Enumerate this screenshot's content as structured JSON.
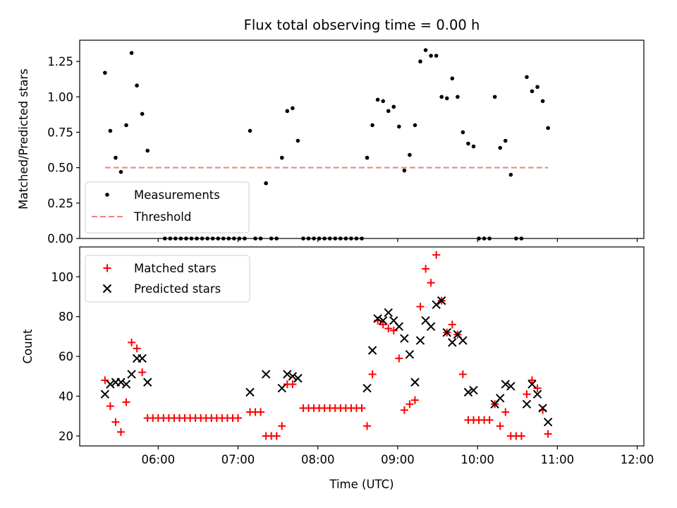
{
  "chart_data": [
    {
      "type": "scatter",
      "title": "Flux total observing time = 0.00 h",
      "xlabel": "",
      "ylabel": "Matched/Predicted stars",
      "ylim": [
        0,
        1.4
      ],
      "xlim": [
        "05:01",
        "12:05"
      ],
      "y_ticks": [
        "0.00",
        "0.25",
        "0.50",
        "0.75",
        "1.00",
        "1.25"
      ],
      "y_tick_values": [
        0,
        0.25,
        0.5,
        0.75,
        1.0,
        1.25
      ],
      "legend_position": "lower-left",
      "series": [
        {
          "name": "Measurements",
          "marker": "dot",
          "color": "#000000",
          "points": [
            [
              "05:20",
              1.17
            ],
            [
              "05:24",
              0.76
            ],
            [
              "05:28",
              0.57
            ],
            [
              "05:32",
              0.47
            ],
            [
              "05:36",
              0.8
            ],
            [
              "05:40",
              1.31
            ],
            [
              "05:44",
              1.08
            ],
            [
              "05:48",
              0.88
            ],
            [
              "05:52",
              0.62
            ],
            [
              "06:05",
              0
            ],
            [
              "06:09",
              0
            ],
            [
              "06:13",
              0
            ],
            [
              "06:17",
              0
            ],
            [
              "06:21",
              0
            ],
            [
              "06:25",
              0
            ],
            [
              "06:29",
              0
            ],
            [
              "06:33",
              0
            ],
            [
              "06:37",
              0
            ],
            [
              "06:41",
              0
            ],
            [
              "06:45",
              0
            ],
            [
              "06:49",
              0
            ],
            [
              "06:53",
              0
            ],
            [
              "06:57",
              0
            ],
            [
              "07:01",
              0
            ],
            [
              "07:05",
              0
            ],
            [
              "07:09",
              0.76
            ],
            [
              "07:13",
              0
            ],
            [
              "07:17",
              0
            ],
            [
              "07:21",
              0.39
            ],
            [
              "07:25",
              0
            ],
            [
              "07:29",
              0
            ],
            [
              "07:33",
              0.57
            ],
            [
              "07:37",
              0.9
            ],
            [
              "07:41",
              0.92
            ],
            [
              "07:45",
              0.69
            ],
            [
              "07:49",
              0
            ],
            [
              "07:53",
              0
            ],
            [
              "07:57",
              0
            ],
            [
              "08:01",
              0
            ],
            [
              "08:05",
              0
            ],
            [
              "08:09",
              0
            ],
            [
              "08:13",
              0
            ],
            [
              "08:17",
              0
            ],
            [
              "08:21",
              0
            ],
            [
              "08:25",
              0
            ],
            [
              "08:29",
              0
            ],
            [
              "08:33",
              0
            ],
            [
              "08:37",
              0.57
            ],
            [
              "08:41",
              0.8
            ],
            [
              "08:45",
              0.98
            ],
            [
              "08:49",
              0.97
            ],
            [
              "08:53",
              0.9
            ],
            [
              "08:57",
              0.93
            ],
            [
              "09:01",
              0.79
            ],
            [
              "09:05",
              0.48
            ],
            [
              "09:09",
              0.59
            ],
            [
              "09:13",
              0.8
            ],
            [
              "09:17",
              1.25
            ],
            [
              "09:21",
              1.33
            ],
            [
              "09:25",
              1.29
            ],
            [
              "09:29",
              1.29
            ],
            [
              "09:33",
              1.0
            ],
            [
              "09:37",
              0.99
            ],
            [
              "09:41",
              1.13
            ],
            [
              "09:45",
              1.0
            ],
            [
              "09:49",
              0.75
            ],
            [
              "09:53",
              0.67
            ],
            [
              "09:57",
              0.65
            ],
            [
              "10:01",
              0
            ],
            [
              "10:05",
              0
            ],
            [
              "10:09",
              0
            ],
            [
              "10:13",
              1.0
            ],
            [
              "10:17",
              0.64
            ],
            [
              "10:21",
              0.69
            ],
            [
              "10:25",
              0.45
            ],
            [
              "10:29",
              0
            ],
            [
              "10:33",
              0
            ],
            [
              "10:37",
              1.14
            ],
            [
              "10:41",
              1.04
            ],
            [
              "10:45",
              1.07
            ],
            [
              "10:49",
              0.97
            ],
            [
              "10:53",
              0.78
            ]
          ]
        },
        {
          "name": "Threshold",
          "type": "line",
          "style": "dashed",
          "color": "#f08080",
          "points": [
            [
              "05:20",
              0.5
            ],
            [
              "10:53",
              0.5
            ]
          ]
        }
      ]
    },
    {
      "type": "scatter",
      "title": "",
      "xlabel": "Time (UTC)",
      "ylabel": "Count",
      "ylim": [
        15,
        115
      ],
      "xlim": [
        "05:01",
        "12:05"
      ],
      "x_ticks": [
        "06:00",
        "07:00",
        "08:00",
        "09:00",
        "10:00",
        "11:00",
        "12:00"
      ],
      "y_ticks": [
        "20",
        "40",
        "60",
        "80",
        "100"
      ],
      "y_tick_values": [
        20,
        40,
        60,
        80,
        100
      ],
      "legend_position": "upper-left",
      "series": [
        {
          "name": "Matched stars",
          "marker": "plus",
          "color": "#ff0000",
          "points": [
            [
              "05:20",
              48
            ],
            [
              "05:24",
              35
            ],
            [
              "05:28",
              27
            ],
            [
              "05:32",
              22
            ],
            [
              "05:36",
              37
            ],
            [
              "05:40",
              67
            ],
            [
              "05:44",
              64
            ],
            [
              "05:48",
              52
            ],
            [
              "05:52",
              29
            ],
            [
              "05:56",
              29
            ],
            [
              "06:00",
              29
            ],
            [
              "06:04",
              29
            ],
            [
              "06:08",
              29
            ],
            [
              "06:12",
              29
            ],
            [
              "06:16",
              29
            ],
            [
              "06:20",
              29
            ],
            [
              "06:24",
              29
            ],
            [
              "06:28",
              29
            ],
            [
              "06:32",
              29
            ],
            [
              "06:36",
              29
            ],
            [
              "06:40",
              29
            ],
            [
              "06:44",
              29
            ],
            [
              "06:48",
              29
            ],
            [
              "06:52",
              29
            ],
            [
              "06:56",
              29
            ],
            [
              "07:00",
              29
            ],
            [
              "07:09",
              32
            ],
            [
              "07:13",
              32
            ],
            [
              "07:17",
              32
            ],
            [
              "07:21",
              20
            ],
            [
              "07:25",
              20
            ],
            [
              "07:29",
              20
            ],
            [
              "07:33",
              25
            ],
            [
              "07:37",
              46
            ],
            [
              "07:41",
              46
            ],
            [
              "07:49",
              34
            ],
            [
              "07:53",
              34
            ],
            [
              "07:57",
              34
            ],
            [
              "08:01",
              34
            ],
            [
              "08:05",
              34
            ],
            [
              "08:09",
              34
            ],
            [
              "08:13",
              34
            ],
            [
              "08:17",
              34
            ],
            [
              "08:21",
              34
            ],
            [
              "08:25",
              34
            ],
            [
              "08:29",
              34
            ],
            [
              "08:33",
              34
            ],
            [
              "08:37",
              25
            ],
            [
              "08:41",
              51
            ],
            [
              "08:45",
              78
            ],
            [
              "08:49",
              76
            ],
            [
              "08:53",
              74
            ],
            [
              "08:57",
              73
            ],
            [
              "09:01",
              59
            ],
            [
              "09:05",
              33
            ],
            [
              "09:09",
              36
            ],
            [
              "09:13",
              38
            ],
            [
              "09:17",
              85
            ],
            [
              "09:21",
              104
            ],
            [
              "09:25",
              97
            ],
            [
              "09:29",
              111
            ],
            [
              "09:33",
              88
            ],
            [
              "09:37",
              72
            ],
            [
              "09:41",
              76
            ],
            [
              "09:45",
              71
            ],
            [
              "09:49",
              51
            ],
            [
              "09:53",
              28
            ],
            [
              "09:57",
              28
            ],
            [
              "10:01",
              28
            ],
            [
              "10:05",
              28
            ],
            [
              "10:09",
              28
            ],
            [
              "10:13",
              36
            ],
            [
              "10:17",
              25
            ],
            [
              "10:21",
              32
            ],
            [
              "10:25",
              20
            ],
            [
              "10:29",
              20
            ],
            [
              "10:33",
              20
            ],
            [
              "10:37",
              41
            ],
            [
              "10:41",
              48
            ],
            [
              "10:45",
              44
            ],
            [
              "10:49",
              33
            ],
            [
              "10:53",
              21
            ]
          ]
        },
        {
          "name": "Predicted stars",
          "marker": "x",
          "color": "#000000",
          "points": [
            [
              "05:20",
              41
            ],
            [
              "05:24",
              46
            ],
            [
              "05:28",
              47
            ],
            [
              "05:32",
              47
            ],
            [
              "05:36",
              46
            ],
            [
              "05:40",
              51
            ],
            [
              "05:44",
              59
            ],
            [
              "05:48",
              59
            ],
            [
              "05:52",
              47
            ],
            [
              "07:09",
              42
            ],
            [
              "07:21",
              51
            ],
            [
              "07:33",
              44
            ],
            [
              "07:37",
              51
            ],
            [
              "07:41",
              50
            ],
            [
              "07:45",
              49
            ],
            [
              "08:37",
              44
            ],
            [
              "08:41",
              63
            ],
            [
              "08:45",
              79
            ],
            [
              "08:49",
              78
            ],
            [
              "08:53",
              82
            ],
            [
              "08:57",
              78
            ],
            [
              "09:01",
              75
            ],
            [
              "09:05",
              69
            ],
            [
              "09:09",
              61
            ],
            [
              "09:13",
              47
            ],
            [
              "09:17",
              68
            ],
            [
              "09:21",
              78
            ],
            [
              "09:25",
              75
            ],
            [
              "09:29",
              86
            ],
            [
              "09:33",
              88
            ],
            [
              "09:37",
              72
            ],
            [
              "09:41",
              67
            ],
            [
              "09:45",
              71
            ],
            [
              "09:49",
              68
            ],
            [
              "09:53",
              42
            ],
            [
              "09:57",
              43
            ],
            [
              "10:13",
              36
            ],
            [
              "10:17",
              39
            ],
            [
              "10:21",
              46
            ],
            [
              "10:25",
              45
            ],
            [
              "10:37",
              36
            ],
            [
              "10:41",
              46
            ],
            [
              "10:45",
              41
            ],
            [
              "10:49",
              34
            ],
            [
              "10:53",
              27
            ]
          ]
        }
      ]
    }
  ]
}
